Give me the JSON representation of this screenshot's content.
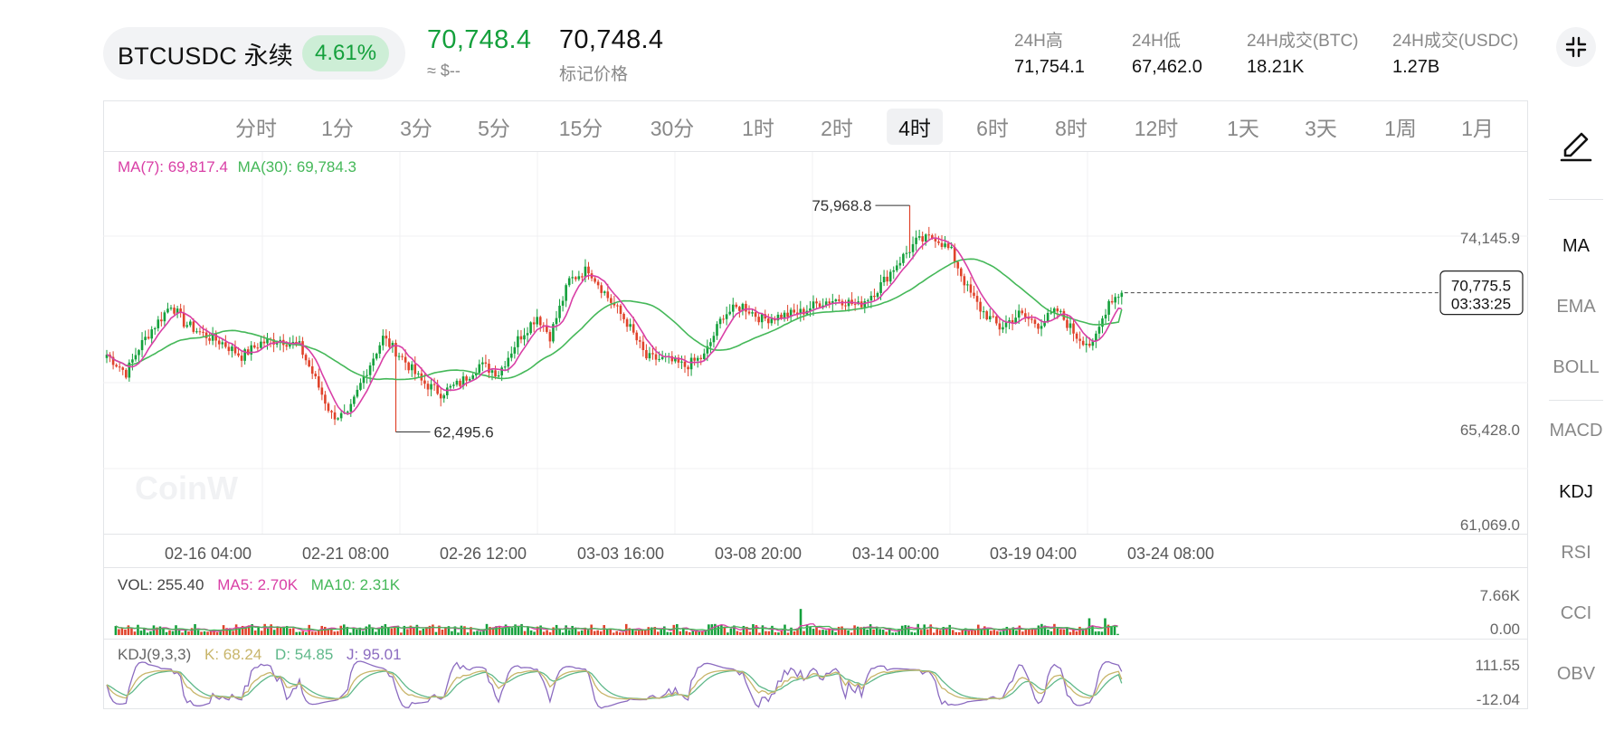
{
  "header": {
    "symbol": "BTCUSDC 永续",
    "change_pct": "4.61%",
    "last_price": "70,748.4",
    "last_price_fiat": "≈ $--",
    "mark_price": "70,748.4",
    "mark_price_label": "标记价格",
    "stats": [
      {
        "label": "24H高",
        "value": "71,754.1"
      },
      {
        "label": "24H低",
        "value": "67,462.0"
      },
      {
        "label": "24H成交(BTC)",
        "value": "18.21K"
      },
      {
        "label": "24H成交(USDC)",
        "value": "1.27B"
      }
    ]
  },
  "intervals": [
    "分时",
    "1分",
    "3分",
    "5分",
    "15分",
    "30分",
    "1时",
    "2时",
    "4时",
    "6时",
    "8时",
    "12时",
    "1天",
    "3天",
    "1周",
    "1月"
  ],
  "active_interval": "4时",
  "main": {
    "ma7_label": "MA(7): 69,817.4",
    "ma30_label": "MA(30): 69,784.3",
    "watermark": "CoinW",
    "y_ticks": [
      "74,145.9",
      "65,428.0",
      "61,069.0"
    ],
    "high_marker": "75,968.8",
    "low_marker": "62,495.6",
    "current_price": "70,775.5",
    "countdown": "03:33:25",
    "time_labels": [
      "02-16 04:00",
      "02-21 08:00",
      "02-26 12:00",
      "03-03 16:00",
      "03-08 20:00",
      "03-14 00:00",
      "03-19 04:00",
      "03-24 08:00"
    ]
  },
  "volume": {
    "vol_label": "VOL: 255.40",
    "ma5_label": "MA5: 2.70K",
    "ma10_label": "MA10: 2.31K",
    "y_ticks": [
      "7.66K",
      "0.00"
    ]
  },
  "kdj": {
    "title": "KDJ(9,3,3)",
    "k_label": "K: 68.24",
    "d_label": "D: 54.85",
    "j_label": "J: 95.01",
    "y_ticks": [
      "111.55",
      "-12.04"
    ]
  },
  "sidebar": {
    "indicators": [
      "MA",
      "EMA",
      "BOLL",
      "MACD",
      "KDJ",
      "RSI",
      "CCI",
      "OBV"
    ],
    "active_main": "MA",
    "active_sub": "KDJ"
  },
  "colors": {
    "up": "#14a03c",
    "down": "#e0432b",
    "ma7": "#d93fa6",
    "ma30": "#45b859",
    "k": "#c8b56a",
    "d": "#5fb88a",
    "j": "#8b6bc0"
  },
  "chart_data": {
    "type": "candlestick",
    "interval": "4H",
    "x_labels": [
      "02-16 04:00",
      "02-21 08:00",
      "02-26 12:00",
      "03-03 16:00",
      "03-08 20:00",
      "03-14 00:00",
      "03-19 04:00",
      "03-24 08:00"
    ],
    "y_ticks": [
      74145.9,
      65428.0,
      61069.0
    ],
    "close_anchors": [
      [
        0,
        67100
      ],
      [
        6,
        66000
      ],
      [
        10,
        67500
      ],
      [
        14,
        68600
      ],
      [
        17,
        69300
      ],
      [
        20,
        70100
      ],
      [
        24,
        69000
      ],
      [
        30,
        68300
      ],
      [
        36,
        67800
      ],
      [
        42,
        67000
      ],
      [
        48,
        67800
      ],
      [
        54,
        68000
      ],
      [
        60,
        67600
      ],
      [
        64,
        66000
      ],
      [
        70,
        63500
      ],
      [
        75,
        63400
      ],
      [
        80,
        65800
      ],
      [
        86,
        68100
      ],
      [
        92,
        66900
      ],
      [
        98,
        65500
      ],
      [
        104,
        64800
      ],
      [
        110,
        65400
      ],
      [
        116,
        66500
      ],
      [
        122,
        66000
      ],
      [
        128,
        68000
      ],
      [
        134,
        69400
      ],
      [
        138,
        68200
      ],
      [
        144,
        71500
      ],
      [
        150,
        72200
      ],
      [
        156,
        70500
      ],
      [
        162,
        69000
      ],
      [
        168,
        66900
      ],
      [
        174,
        66800
      ],
      [
        180,
        66400
      ],
      [
        186,
        67000
      ],
      [
        192,
        69500
      ],
      [
        198,
        70000
      ],
      [
        204,
        69200
      ],
      [
        210,
        69400
      ],
      [
        216,
        69600
      ],
      [
        222,
        70200
      ],
      [
        228,
        70400
      ],
      [
        234,
        70000
      ],
      [
        240,
        71000
      ],
      [
        246,
        72500
      ],
      [
        252,
        73800
      ],
      [
        258,
        74100
      ],
      [
        263,
        73200
      ],
      [
        268,
        71000
      ],
      [
        272,
        69800
      ],
      [
        278,
        68700
      ],
      [
        284,
        69500
      ],
      [
        290,
        68900
      ],
      [
        296,
        69700
      ],
      [
        302,
        68200
      ],
      [
        307,
        67600
      ],
      [
        312,
        70300
      ],
      [
        316,
        70775
      ]
    ],
    "ma7_last": 69817.4,
    "ma30_last": 69784.3,
    "high": 75968.8,
    "low": 62495.6,
    "current": 70775.5,
    "volume": {
      "ma5": 2700,
      "ma10": 2310,
      "last": 255.4,
      "max": 7660
    },
    "kdj": {
      "K": 68.24,
      "D": 54.85,
      "J": 95.01,
      "max": 111.55,
      "min": -12.04
    }
  }
}
